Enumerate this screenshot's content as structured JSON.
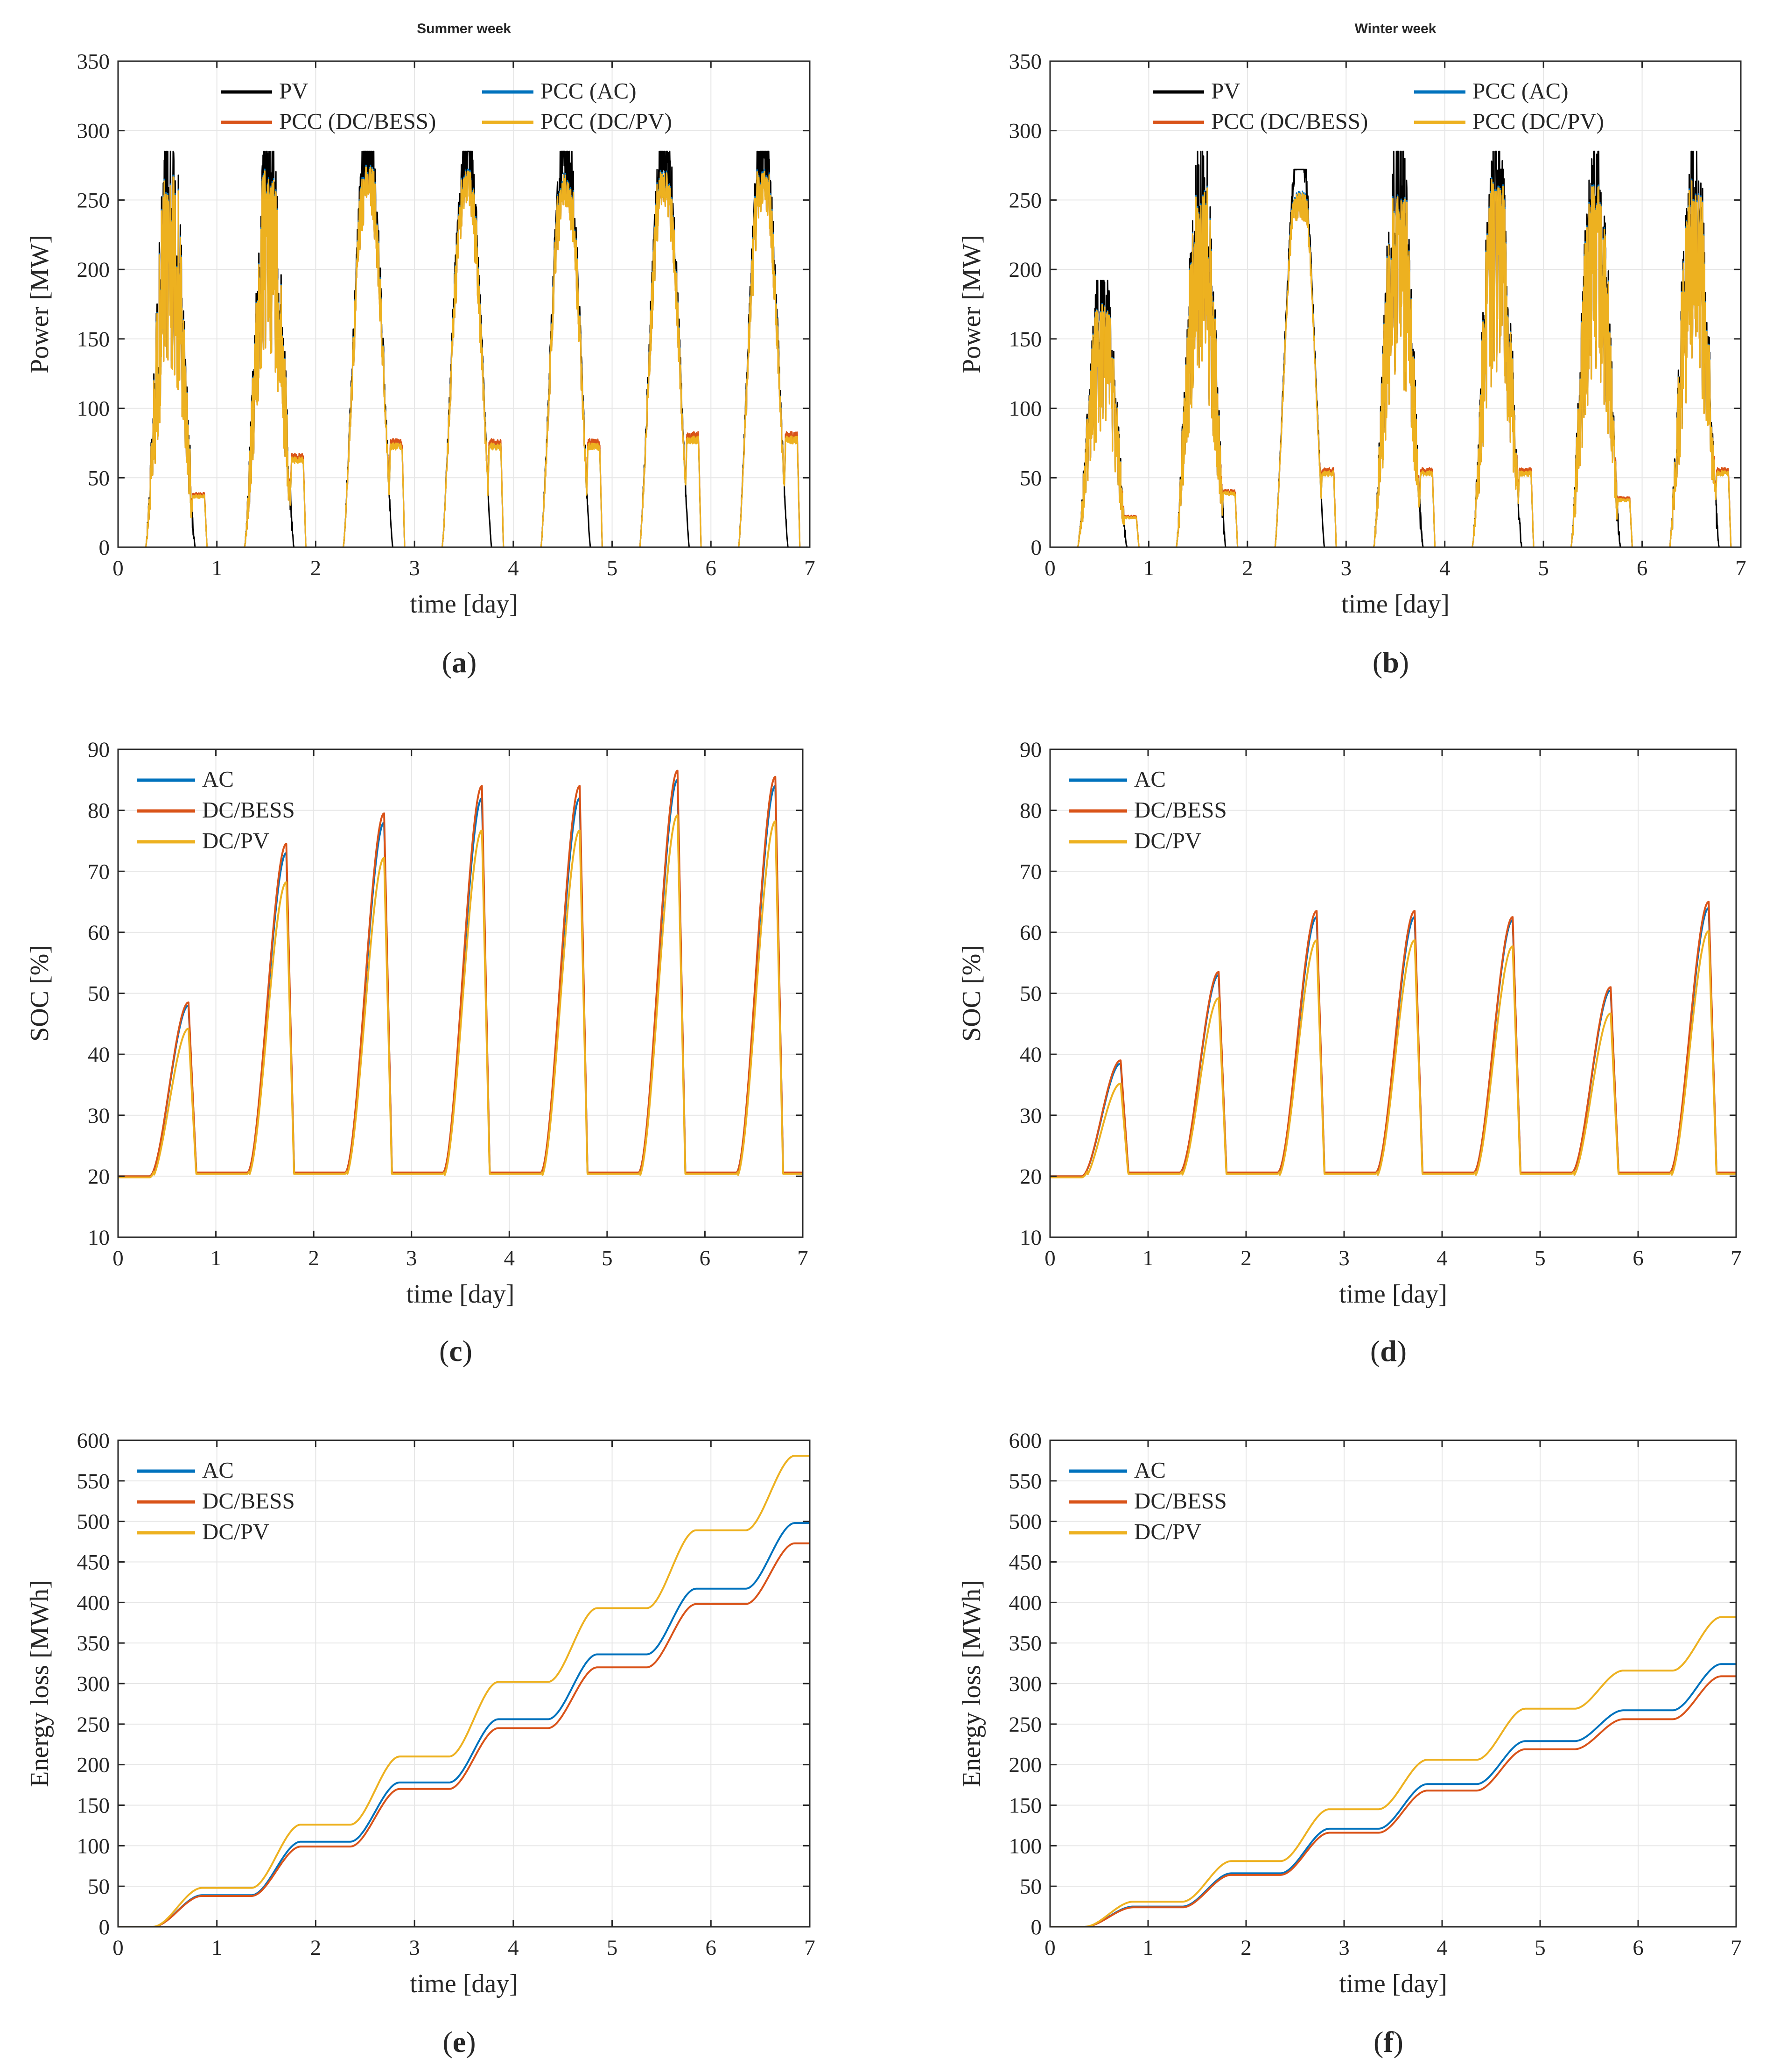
{
  "colors": {
    "PV": "#000000",
    "AC": "#0072BD",
    "DCBESS": "#D95319",
    "DCPV": "#EDB120",
    "grid": "#e6e6e6",
    "axis": "#262626"
  },
  "charts": [
    {
      "id": "a",
      "caption_label": "a",
      "title": "Summer week",
      "type": "line",
      "xlabel": "time [day]",
      "ylabel": "Power [MW]",
      "xlim": [
        0,
        7
      ],
      "ylim": [
        0,
        350
      ],
      "xticks": [
        "0",
        "1",
        "2",
        "3",
        "4",
        "5",
        "6",
        "7"
      ],
      "yticks": [
        "0",
        "50",
        "100",
        "150",
        "200",
        "250",
        "300",
        "350"
      ],
      "legend": {
        "layout": "two-column",
        "entries": [
          "PV",
          "PCC (AC)",
          "PCC (DC/BESS)",
          "PCC (DC/PV)"
        ]
      }
    },
    {
      "id": "b",
      "caption_label": "b",
      "title": "Winter week",
      "type": "line",
      "xlabel": "time [day]",
      "ylabel": "Power [MW]",
      "xlim": [
        0,
        7
      ],
      "ylim": [
        0,
        350
      ],
      "xticks": [
        "0",
        "1",
        "2",
        "3",
        "4",
        "5",
        "6",
        "7"
      ],
      "yticks": [
        "0",
        "50",
        "100",
        "150",
        "200",
        "250",
        "300",
        "350"
      ],
      "legend": {
        "layout": "two-column",
        "entries": [
          "PV",
          "PCC (AC)",
          "PCC (DC/BESS)",
          "PCC (DC/PV)"
        ]
      }
    },
    {
      "id": "c",
      "caption_label": "c",
      "title": "",
      "type": "line",
      "xlabel": "time [day]",
      "ylabel": "SOC [%]",
      "xlim": [
        0,
        7
      ],
      "ylim": [
        10,
        90
      ],
      "xticks": [
        "0",
        "1",
        "2",
        "3",
        "4",
        "5",
        "6",
        "7"
      ],
      "yticks": [
        "10",
        "20",
        "30",
        "40",
        "50",
        "60",
        "70",
        "80",
        "90"
      ],
      "legend": {
        "layout": "one-column",
        "entries": [
          "AC",
          "DC/BESS",
          "DC/PV"
        ]
      }
    },
    {
      "id": "d",
      "caption_label": "d",
      "title": "",
      "type": "line",
      "xlabel": "time [day]",
      "ylabel": "SOC [%]",
      "xlim": [
        0,
        7
      ],
      "ylim": [
        10,
        90
      ],
      "xticks": [
        "0",
        "1",
        "2",
        "3",
        "4",
        "5",
        "6",
        "7"
      ],
      "yticks": [
        "10",
        "20",
        "30",
        "40",
        "50",
        "60",
        "70",
        "80",
        "90"
      ],
      "legend": {
        "layout": "one-column",
        "entries": [
          "AC",
          "DC/BESS",
          "DC/PV"
        ]
      }
    },
    {
      "id": "e",
      "caption_label": "e",
      "title": "",
      "type": "line",
      "xlabel": "time [day]",
      "ylabel": "Energy loss [MWh]",
      "xlim": [
        0,
        7
      ],
      "ylim": [
        0,
        600
      ],
      "xticks": [
        "0",
        "1",
        "2",
        "3",
        "4",
        "5",
        "6",
        "7"
      ],
      "yticks": [
        "0",
        "50",
        "100",
        "150",
        "200",
        "250",
        "300",
        "350",
        "400",
        "450",
        "500",
        "550",
        "600"
      ],
      "legend": {
        "layout": "one-column",
        "entries": [
          "AC",
          "DC/BESS",
          "DC/PV"
        ]
      }
    },
    {
      "id": "f",
      "caption_label": "f",
      "title": "",
      "type": "line",
      "xlabel": "time [day]",
      "ylabel": "Energy loss [MWh]",
      "xlim": [
        0,
        7
      ],
      "ylim": [
        0,
        600
      ],
      "xticks": [
        "0",
        "1",
        "2",
        "3",
        "4",
        "5",
        "6",
        "7"
      ],
      "yticks": [
        "0",
        "50",
        "100",
        "150",
        "200",
        "250",
        "300",
        "350",
        "400",
        "450",
        "500",
        "550",
        "600"
      ],
      "legend": {
        "layout": "one-column",
        "entries": [
          "AC",
          "DC/BESS",
          "DC/PV"
        ]
      }
    }
  ],
  "chart_data": [
    {
      "panel": "a",
      "type": "line",
      "title": "Summer week",
      "xlabel": "time [day]",
      "ylabel": "Power [MW]",
      "xlim": [
        0,
        7
      ],
      "ylim": [
        0,
        350
      ],
      "grid": true,
      "legend_position": "top",
      "pv_rated_cap": 285,
      "series": [
        {
          "name": "PV",
          "color": "#000000",
          "days": [
            [
              0.28,
              0.55,
              0.82,
              200
            ],
            [
              1.25,
              1.55,
              1.8,
              270
            ],
            [
              1.25,
              1.55,
              1.8,
              285
            ],
            [
              2.25,
              2.55,
              2.82,
              285
            ],
            [
              3.25,
              3.55,
              3.85,
              285
            ],
            [
              4.25,
              4.55,
              4.82,
              285
            ],
            [
              5.25,
              5.55,
              5.85,
              285
            ],
            [
              6.25,
              6.55,
              6.87,
              285
            ]
          ],
          "peaks": [
            [
              0.55,
              285
            ],
            [
              1.5,
              285
            ],
            [
              2.5,
              285
            ],
            [
              3.5,
              285
            ],
            [
              4.5,
              285
            ],
            [
              5.5,
              285
            ],
            [
              6.5,
              285
            ]
          ]
        },
        {
          "name": "PCC (AC)",
          "color": "#0072BD"
        },
        {
          "name": "PCC (DC/BESS)",
          "color": "#D95319"
        },
        {
          "name": "PCC (DC/PV)",
          "color": "#EDB120",
          "peaks": [
            [
              0.55,
              270
            ],
            [
              1.55,
              272
            ],
            [
              2.55,
              275
            ],
            [
              3.55,
              272
            ],
            [
              4.55,
              268
            ],
            [
              5.55,
              270
            ],
            [
              6.55,
              275
            ]
          ],
          "evening_tail": [
            [
              0.75,
              38
            ],
            [
              1.8,
              65
            ],
            [
              2.8,
              75
            ],
            [
              3.8,
              75
            ],
            [
              4.85,
              75
            ],
            [
              5.85,
              80
            ],
            [
              6.85,
              80
            ]
          ]
        }
      ]
    },
    {
      "panel": "b",
      "type": "line",
      "title": "Winter week",
      "xlabel": "time [day]",
      "ylabel": "Power [MW]",
      "xlim": [
        0,
        7
      ],
      "ylim": [
        0,
        350
      ],
      "grid": true,
      "legend_position": "top",
      "series": [
        {
          "name": "PV",
          "color": "#000000",
          "peaks": [
            [
              0.55,
              192
            ],
            [
              1.5,
              285
            ],
            [
              2.5,
              272
            ],
            [
              3.5,
              285
            ],
            [
              4.5,
              285
            ],
            [
              5.5,
              285
            ],
            [
              6.5,
              285
            ]
          ]
        },
        {
          "name": "PCC (AC)",
          "color": "#0072BD"
        },
        {
          "name": "PCC (DC/BESS)",
          "color": "#D95319"
        },
        {
          "name": "PCC (DC/PV)",
          "color": "#EDB120",
          "peaks": [
            [
              0.55,
              175
            ],
            [
              1.55,
              260
            ],
            [
              2.55,
              255
            ],
            [
              3.55,
              255
            ],
            [
              4.55,
              265
            ],
            [
              5.55,
              260
            ],
            [
              6.55,
              265
            ]
          ],
          "evening_tail": [
            [
              0.75,
              22
            ],
            [
              1.8,
              40
            ],
            [
              2.8,
              55
            ],
            [
              3.8,
              55
            ],
            [
              4.8,
              55
            ],
            [
              5.8,
              35
            ],
            [
              6.8,
              55
            ]
          ]
        }
      ]
    },
    {
      "panel": "c",
      "type": "line",
      "xlabel": "time [day]",
      "ylabel": "SOC [%]",
      "xlim": [
        0,
        7
      ],
      "ylim": [
        10,
        90
      ],
      "grid": true,
      "legend_position": "top-left",
      "baseline_soc": 20,
      "series": [
        {
          "name": "AC",
          "color": "#0072BD",
          "daily_peaks": [
            48,
            73,
            78,
            82,
            82,
            85,
            84
          ]
        },
        {
          "name": "DC/BESS",
          "color": "#D95319",
          "daily_peaks": [
            48.5,
            74.5,
            79.5,
            84,
            84,
            86.5,
            85.5
          ]
        },
        {
          "name": "DC/PV",
          "color": "#EDB120",
          "daily_peaks": [
            45,
            69,
            73,
            77.5,
            77.5,
            80,
            79
          ]
        }
      ]
    },
    {
      "panel": "d",
      "type": "line",
      "xlabel": "time [day]",
      "ylabel": "SOC [%]",
      "xlim": [
        0,
        7
      ],
      "ylim": [
        10,
        90
      ],
      "grid": true,
      "legend_position": "top-left",
      "baseline_soc": 20,
      "series": [
        {
          "name": "AC",
          "color": "#0072BD",
          "daily_peaks": [
            38.5,
            53,
            62.5,
            62.5,
            62,
            50.5,
            64
          ]
        },
        {
          "name": "DC/BESS",
          "color": "#D95319",
          "daily_peaks": [
            39,
            53.5,
            63.5,
            63.5,
            62.5,
            51,
            65
          ]
        },
        {
          "name": "DC/PV",
          "color": "#EDB120",
          "daily_peaks": [
            36,
            50,
            59.5,
            59.5,
            58.5,
            47.5,
            61
          ]
        }
      ]
    },
    {
      "panel": "e",
      "type": "line",
      "xlabel": "time [day]",
      "ylabel": "Energy loss [MWh]",
      "xlim": [
        0,
        7
      ],
      "ylim": [
        0,
        600
      ],
      "grid": true,
      "legend_position": "top-left",
      "series": [
        {
          "name": "AC",
          "color": "#0072BD",
          "x": [
            0,
            1,
            2,
            3,
            4,
            5,
            6,
            7
          ],
          "y": [
            0,
            39,
            105,
            178,
            256,
            336,
            417,
            498
          ]
        },
        {
          "name": "DC/BESS",
          "color": "#D95319",
          "x": [
            0,
            1,
            2,
            3,
            4,
            5,
            6,
            7
          ],
          "y": [
            0,
            38,
            99,
            170,
            245,
            320,
            398,
            473
          ]
        },
        {
          "name": "DC/PV",
          "color": "#EDB120",
          "x": [
            0,
            1,
            2,
            3,
            4,
            5,
            6,
            7
          ],
          "y": [
            0,
            48,
            126,
            210,
            302,
            393,
            489,
            581
          ]
        }
      ]
    },
    {
      "panel": "f",
      "type": "line",
      "xlabel": "time [day]",
      "ylabel": "Energy loss [MWh]",
      "xlim": [
        0,
        7
      ],
      "ylim": [
        0,
        600
      ],
      "grid": true,
      "legend_position": "top-left",
      "series": [
        {
          "name": "AC",
          "color": "#0072BD",
          "x": [
            0,
            1,
            2,
            3,
            4,
            5,
            6,
            7
          ],
          "y": [
            0,
            25,
            66,
            121,
            176,
            229,
            267,
            324
          ]
        },
        {
          "name": "DC/BESS",
          "color": "#D95319",
          "x": [
            0,
            1,
            2,
            3,
            4,
            5,
            6,
            7
          ],
          "y": [
            0,
            24,
            64,
            116,
            168,
            219,
            256,
            309
          ]
        },
        {
          "name": "DC/PV",
          "color": "#EDB120",
          "x": [
            0,
            1,
            2,
            3,
            4,
            5,
            6,
            7
          ],
          "y": [
            0,
            31,
            81,
            145,
            206,
            269,
            316,
            382
          ]
        }
      ]
    }
  ]
}
